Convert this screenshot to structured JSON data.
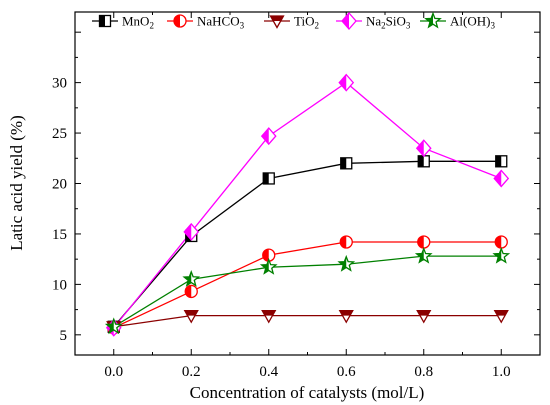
{
  "chart_data": {
    "type": "line",
    "xlabel": "Concentration of catalysts (mol/L)",
    "ylabel": "Latic acid yield (%)",
    "xlim": [
      -0.1,
      1.1
    ],
    "ylim": [
      3,
      37
    ],
    "x_ticks": [
      "0.0",
      "0.2",
      "0.4",
      "0.6",
      "0.8",
      "1.0"
    ],
    "y_ticks": [
      "5",
      "10",
      "15",
      "20",
      "25",
      "30"
    ],
    "x": [
      0.0,
      0.2,
      0.4,
      0.6,
      0.8,
      1.0
    ],
    "grid": false,
    "legend_position": "top",
    "series": [
      {
        "name": "MnO2",
        "legend_parts": [
          [
            "MnO",
            ""
          ],
          [
            "2",
            "sub"
          ]
        ],
        "color": "#000000",
        "marker": "half-square",
        "values": [
          5.8,
          14.8,
          20.5,
          22.0,
          22.2,
          22.2
        ]
      },
      {
        "name": "NaHCO3",
        "legend_parts": [
          [
            "NaHCO",
            ""
          ],
          [
            "3",
            "sub"
          ]
        ],
        "color": "#ff0000",
        "marker": "half-circle",
        "values": [
          5.7,
          9.3,
          12.9,
          14.2,
          14.2,
          14.2
        ]
      },
      {
        "name": "TiO2",
        "legend_parts": [
          [
            "TiO",
            ""
          ],
          [
            "2",
            "sub"
          ]
        ],
        "color": "#8b0000",
        "marker": "half-triangle-down",
        "values": [
          5.8,
          6.9,
          6.9,
          6.9,
          6.9,
          6.9
        ]
      },
      {
        "name": "Na2SiO3",
        "legend_parts": [
          [
            "Na",
            ""
          ],
          [
            "2",
            "sub"
          ],
          [
            "SiO",
            ""
          ],
          [
            "3",
            "sub"
          ]
        ],
        "color": "#ff00ff",
        "marker": "half-diamond",
        "values": [
          5.7,
          15.2,
          24.7,
          30.0,
          23.5,
          20.5
        ]
      },
      {
        "name": "Al(OH)3",
        "legend_parts": [
          [
            "Al(OH)",
            ""
          ],
          [
            "3",
            "sub"
          ]
        ],
        "color": "#008000",
        "marker": "half-star",
        "values": [
          5.8,
          10.5,
          11.7,
          12.0,
          12.8,
          12.8
        ]
      }
    ]
  }
}
